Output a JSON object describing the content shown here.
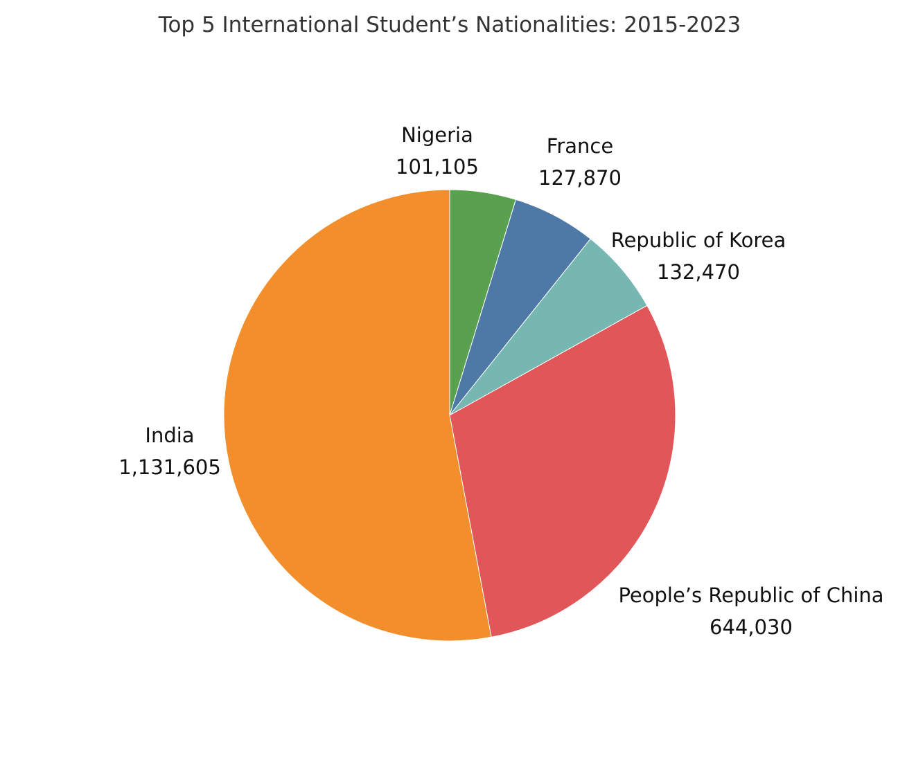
{
  "chart_data": {
    "type": "pie",
    "title": "Top 5 International Student’s Nationalities: 2015-2023",
    "slices": [
      {
        "label": "Nigeria",
        "value": 101105,
        "value_label": "101,105",
        "color": "#59A14F"
      },
      {
        "label": "France",
        "value": 127870,
        "value_label": "127,870",
        "color": "#4E79A7"
      },
      {
        "label": "Republic of Korea",
        "value": 132470,
        "value_label": "132,470",
        "color": "#76B7B2"
      },
      {
        "label": "People’s Republic of China",
        "value": 644030,
        "value_label": "644,030",
        "color": "#E15759"
      },
      {
        "label": "India",
        "value": 1131605,
        "value_label": "1,131,605",
        "color": "#F28E2B"
      }
    ],
    "start_angle": "top",
    "direction": "clockwise"
  }
}
